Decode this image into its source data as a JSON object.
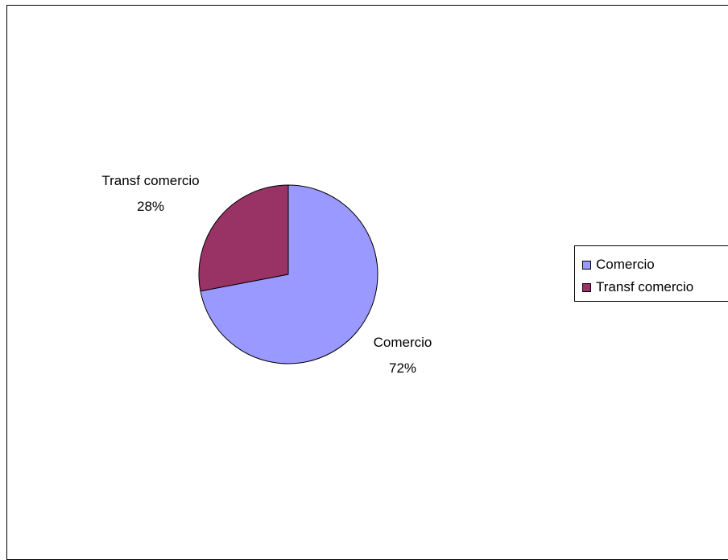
{
  "chart_data": {
    "type": "pie",
    "categories": [
      "Comercio",
      "Transf comercio"
    ],
    "values": [
      72,
      28
    ],
    "slice_labels": [
      {
        "name": "Comercio",
        "percent": "72%"
      },
      {
        "name": "Transf comercio",
        "percent": "28%"
      }
    ],
    "colors": [
      "#9999FF",
      "#993366"
    ],
    "legend": {
      "position": "right",
      "entries": [
        "Comercio",
        "Transf comercio"
      ]
    }
  }
}
